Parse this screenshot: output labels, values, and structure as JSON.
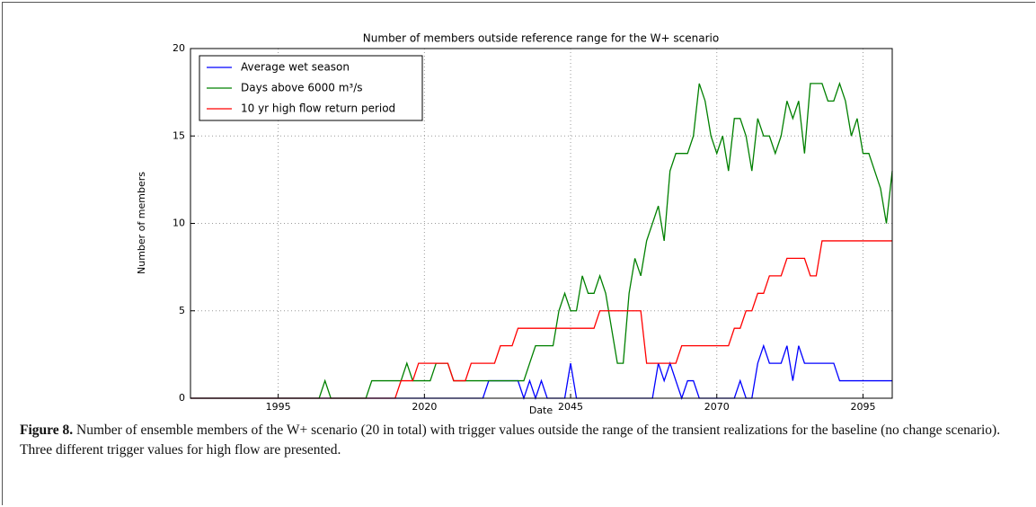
{
  "chart_data": {
    "type": "line",
    "title": "Number of members outside reference range for the W+ scenario",
    "xlabel": "Date",
    "ylabel": "Number of members",
    "x": [
      1980,
      1981,
      1982,
      1983,
      1984,
      1985,
      1986,
      1987,
      1988,
      1989,
      1990,
      1991,
      1992,
      1993,
      1994,
      1995,
      1996,
      1997,
      1998,
      1999,
      2000,
      2001,
      2002,
      2003,
      2004,
      2005,
      2006,
      2007,
      2008,
      2009,
      2010,
      2011,
      2012,
      2013,
      2014,
      2015,
      2016,
      2017,
      2018,
      2019,
      2020,
      2021,
      2022,
      2023,
      2024,
      2025,
      2026,
      2027,
      2028,
      2029,
      2030,
      2031,
      2032,
      2033,
      2034,
      2035,
      2036,
      2037,
      2038,
      2039,
      2040,
      2041,
      2042,
      2043,
      2044,
      2045,
      2046,
      2047,
      2048,
      2049,
      2050,
      2051,
      2052,
      2053,
      2054,
      2055,
      2056,
      2057,
      2058,
      2059,
      2060,
      2061,
      2062,
      2063,
      2064,
      2065,
      2066,
      2067,
      2068,
      2069,
      2070,
      2071,
      2072,
      2073,
      2074,
      2075,
      2076,
      2077,
      2078,
      2079,
      2080,
      2081,
      2082,
      2083,
      2084,
      2085,
      2086,
      2087,
      2088,
      2089,
      2090,
      2091,
      2092,
      2093,
      2094,
      2095,
      2096,
      2097,
      2098,
      2099,
      2100
    ],
    "series": [
      {
        "name": "Average wet season",
        "color": "#0000ff",
        "values": [
          0,
          0,
          0,
          0,
          0,
          0,
          0,
          0,
          0,
          0,
          0,
          0,
          0,
          0,
          0,
          0,
          0,
          0,
          0,
          0,
          0,
          0,
          0,
          0,
          0,
          0,
          0,
          0,
          0,
          0,
          0,
          0,
          0,
          0,
          0,
          0,
          0,
          0,
          0,
          0,
          0,
          0,
          0,
          0,
          0,
          0,
          0,
          0,
          0,
          0,
          0,
          1,
          1,
          1,
          1,
          1,
          1,
          0,
          1,
          0,
          1,
          0,
          0,
          0,
          0,
          2,
          0,
          0,
          0,
          0,
          0,
          0,
          0,
          0,
          0,
          0,
          0,
          0,
          0,
          0,
          2,
          1,
          2,
          1,
          0,
          1,
          1,
          0,
          0,
          0,
          0,
          0,
          0,
          0,
          1,
          0,
          0,
          2,
          3,
          2,
          2,
          2,
          3,
          1,
          3,
          2,
          2,
          2,
          2,
          2,
          2,
          1,
          1,
          1,
          1,
          1,
          1,
          1,
          1,
          1,
          1
        ]
      },
      {
        "name": "Days above 6000 m³/s",
        "color": "#008000",
        "values": [
          0,
          0,
          0,
          0,
          0,
          0,
          0,
          0,
          0,
          0,
          0,
          0,
          0,
          0,
          0,
          0,
          0,
          0,
          0,
          0,
          0,
          0,
          0,
          1,
          0,
          0,
          0,
          0,
          0,
          0,
          0,
          1,
          1,
          1,
          1,
          1,
          1,
          2,
          1,
          1,
          1,
          1,
          2,
          2,
          2,
          1,
          1,
          1,
          1,
          1,
          1,
          1,
          1,
          1,
          1,
          1,
          1,
          1,
          2,
          3,
          3,
          3,
          3,
          5,
          6,
          5,
          5,
          7,
          6,
          6,
          7,
          6,
          4,
          2,
          2,
          6,
          8,
          7,
          9,
          10,
          11,
          9,
          13,
          14,
          14,
          14,
          15,
          18,
          17,
          15,
          14,
          15,
          13,
          16,
          16,
          15,
          13,
          16,
          15,
          15,
          14,
          15,
          17,
          16,
          17,
          14,
          18,
          18,
          18,
          17,
          17,
          18,
          17,
          15,
          16,
          14,
          14,
          13,
          12,
          10,
          13
        ]
      },
      {
        "name": "10 yr high flow return period",
        "color": "#ff0000",
        "values": [
          0,
          0,
          0,
          0,
          0,
          0,
          0,
          0,
          0,
          0,
          0,
          0,
          0,
          0,
          0,
          0,
          0,
          0,
          0,
          0,
          0,
          0,
          0,
          0,
          0,
          0,
          0,
          0,
          0,
          0,
          0,
          0,
          0,
          0,
          0,
          0,
          1,
          1,
          1,
          2,
          2,
          2,
          2,
          2,
          2,
          1,
          1,
          1,
          2,
          2,
          2,
          2,
          2,
          3,
          3,
          3,
          4,
          4,
          4,
          4,
          4,
          4,
          4,
          4,
          4,
          4,
          4,
          4,
          4,
          4,
          5,
          5,
          5,
          5,
          5,
          5,
          5,
          5,
          2,
          2,
          2,
          2,
          2,
          2,
          3,
          3,
          3,
          3,
          3,
          3,
          3,
          3,
          3,
          4,
          4,
          5,
          5,
          6,
          6,
          7,
          7,
          7,
          8,
          8,
          8,
          8,
          7,
          7,
          9,
          9,
          9,
          9,
          9,
          9,
          9,
          9,
          9,
          9,
          9,
          9,
          9
        ]
      }
    ],
    "xlim": [
      1980,
      2100
    ],
    "ylim": [
      0,
      20
    ],
    "xticks": [
      1995,
      2020,
      2045,
      2070,
      2095
    ],
    "yticks": [
      0,
      5,
      10,
      15,
      20
    ],
    "grid": true,
    "legend": "upper left"
  },
  "caption": {
    "label": "Figure 8.",
    "text": "Number of ensemble members of the W+ scenario (20 in total) with trigger values outside the range of the transient realizations for the baseline (no change scenario). Three different trigger values for high flow are presented."
  }
}
